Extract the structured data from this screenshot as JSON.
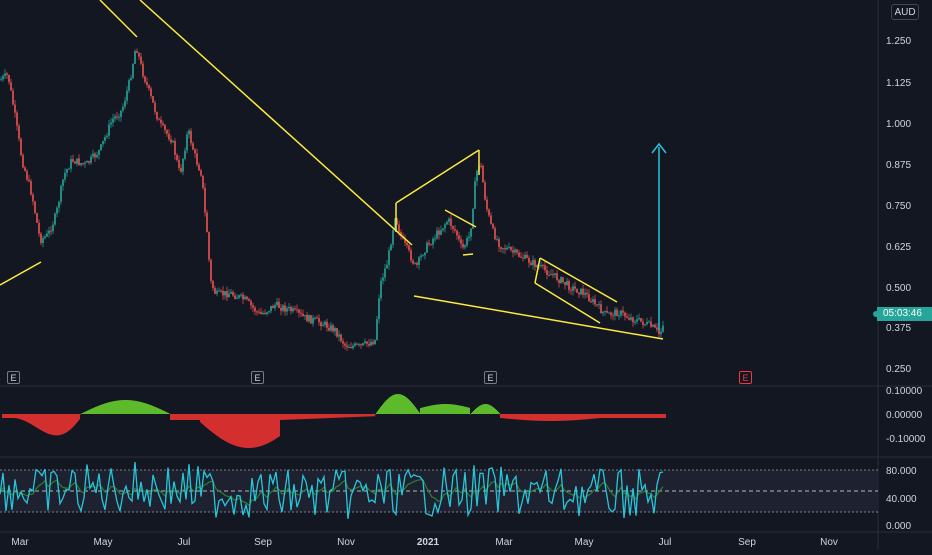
{
  "currency": "AUD",
  "price_axis": {
    "ticks": [
      "1.250",
      "1.125",
      "1.000",
      "0.875",
      "0.750",
      "0.625",
      "0.500",
      "0.375",
      "0.250"
    ],
    "current_time_label": "05:03:46"
  },
  "macd_axis": {
    "ticks": [
      "0.10000",
      "0.00000",
      "-0.10000"
    ]
  },
  "rsi_axis": {
    "ticks": [
      "80.000",
      "40.000",
      "0.000"
    ]
  },
  "time_axis": {
    "labels": [
      "Mar",
      "May",
      "Jul",
      "Sep",
      "Nov",
      "2021",
      "Mar",
      "May",
      "Jul",
      "Sep",
      "Nov"
    ]
  },
  "earnings_markers": [
    "E",
    "E",
    "E",
    "E"
  ],
  "colors": {
    "background": "#131722",
    "up_candle": "#26a69a",
    "down_candle": "#ef5350",
    "trendline": "#ffeb3b",
    "target_arrow": "#26c6da",
    "hist_green": "#5dbb2b",
    "hist_red": "#d32f2f",
    "rsi_line": "#26c6da",
    "rsi_signal": "#2e7d32"
  },
  "icons": {
    "target_arrow": "arrow-up-icon"
  }
}
